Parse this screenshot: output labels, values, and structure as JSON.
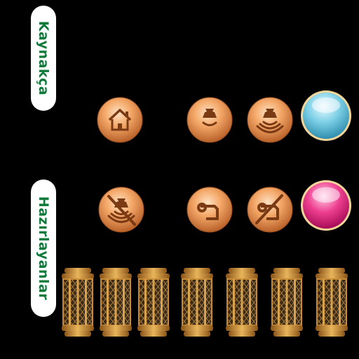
{
  "labels": {
    "sources": "Kaynakça",
    "makers": "Hazırlayanlar"
  },
  "icons": {
    "row1": [
      "home-icon",
      "bell-sound-icon",
      "bell-loud-icon",
      "blue-orb-icon"
    ],
    "row2": [
      "bell-mute-icon",
      "note-icon",
      "note-off-icon",
      "pink-orb-icon"
    ]
  },
  "lanterns": {
    "count": 7
  },
  "colors": {
    "background": "#000000",
    "label_text": "#0e7a3a",
    "button_orange": "#f0a064",
    "icon_brown": "#7a3a14",
    "orb_blue": "#6cc3dd",
    "orb_pink": "#e8207a",
    "lantern_gold": "#c88a32"
  }
}
